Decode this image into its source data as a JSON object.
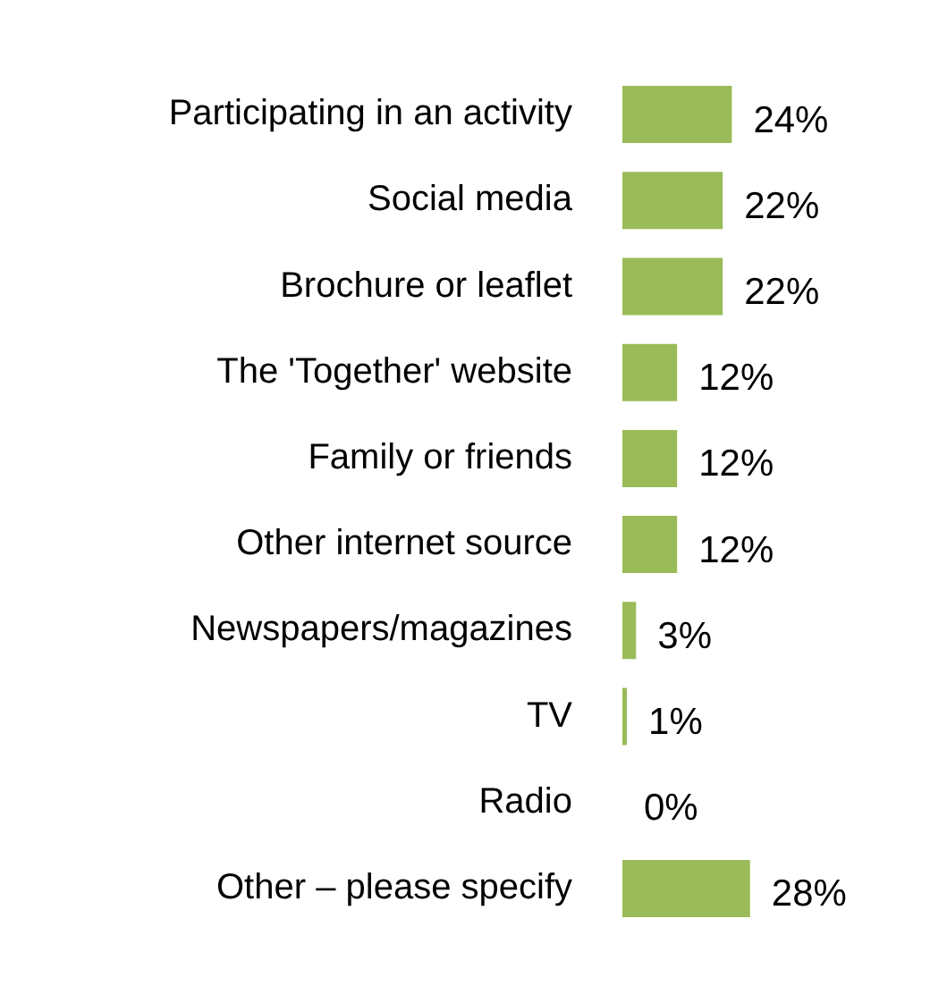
{
  "chart_data": {
    "type": "bar",
    "orientation": "horizontal",
    "categories": [
      "Participating in an activity",
      "Social media",
      "Brochure or leaflet",
      "The 'Together' website",
      "Family or friends",
      "Other internet source",
      "Newspapers/magazines",
      "TV",
      "Radio",
      "Other – please specify"
    ],
    "values": [
      24,
      22,
      22,
      12,
      12,
      12,
      3,
      1,
      0,
      28
    ],
    "value_labels": [
      "24%",
      "22%",
      "22%",
      "12%",
      "12%",
      "12%",
      "3%",
      "1%",
      "0%",
      "28%"
    ],
    "color": "#9bbb59"
  }
}
